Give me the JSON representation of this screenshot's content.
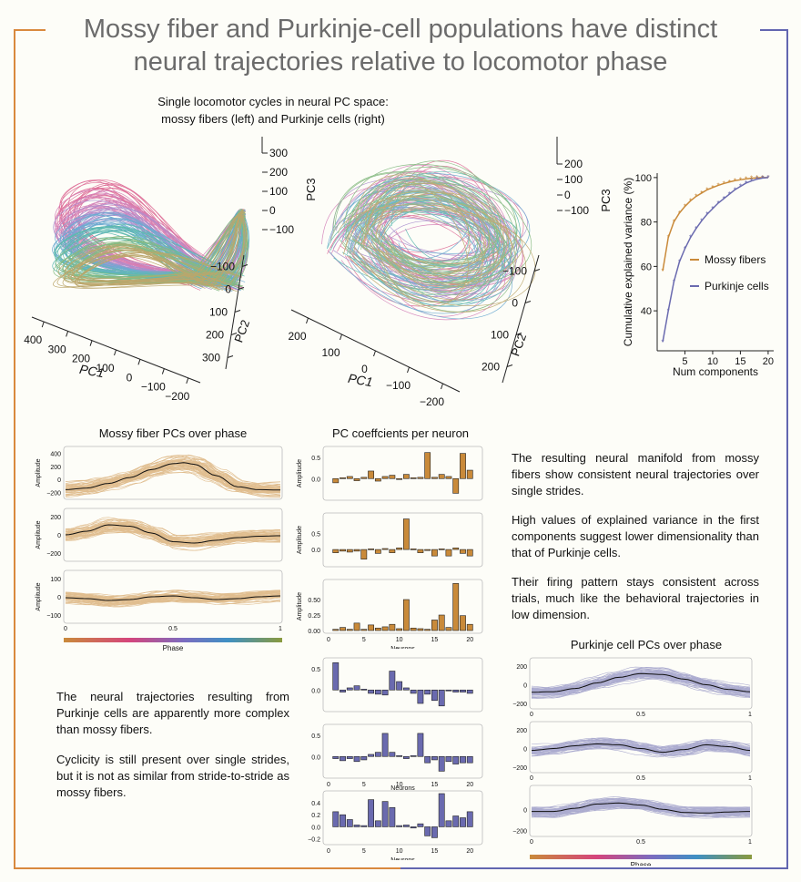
{
  "title_line1": "Mossy fiber and Purkinje-cell populations have distinct",
  "title_line2": "neural trajectories relative to locomotor phase",
  "subtitle_line1": "Single locomotor cycles in neural PC space:",
  "subtitle_line2": "mossy fibers (left) and Purkinje cells (right)",
  "colors": {
    "mossy": "#c98a3a",
    "purkinje": "#6a6aaf",
    "frame_left": "#d9893e",
    "frame_right": "#6266b0"
  },
  "pc3d_left": {
    "pc3_ticks": [
      "300",
      "200",
      "100",
      "0",
      "−100"
    ],
    "pc2_ticks": [
      "−100",
      "0",
      "100",
      "200",
      "300"
    ],
    "pc1_ticks": [
      "400",
      "300",
      "200",
      "100",
      "0",
      "−100",
      "−200"
    ],
    "pc1": "PC1",
    "pc2": "PC2",
    "pc3": "PC3"
  },
  "pc3d_right": {
    "pc3_ticks": [
      "200",
      "100",
      "0",
      "−100"
    ],
    "pc2_ticks": [
      "−100",
      "0",
      "100",
      "200"
    ],
    "pc1_ticks": [
      "200",
      "100",
      "0",
      "−100",
      "−200"
    ],
    "pc1": "PC1",
    "pc2": "PC2",
    "pc3": "PC3"
  },
  "chart_data": [
    {
      "type": "line",
      "title": "",
      "xlabel": "Num components",
      "ylabel": "Cumulative explained variance (%)",
      "x": [
        1,
        2,
        3,
        4,
        5,
        6,
        7,
        8,
        9,
        10,
        11,
        12,
        13,
        14,
        15,
        16,
        17,
        18,
        19,
        20
      ],
      "xticks": [
        "5",
        "10",
        "15",
        "20"
      ],
      "yticks": [
        "40",
        "60",
        "80",
        "100"
      ],
      "ylim": [
        22,
        102
      ],
      "legend_placement": "center-right",
      "series": [
        {
          "name": "Mossy fibers",
          "values": [
            58,
            73,
            80,
            84,
            87,
            89.5,
            91.5,
            93,
            94.5,
            95.5,
            96.5,
            97.3,
            98,
            98.6,
            99,
            99.4,
            99.7,
            99.9,
            100,
            100
          ]
        },
        {
          "name": "Purkinje cells",
          "values": [
            26,
            40,
            53,
            62,
            68,
            73,
            77,
            80.5,
            83.5,
            86,
            88.5,
            90.5,
            92.5,
            94.5,
            96,
            97.5,
            98.5,
            99.3,
            99.8,
            100
          ]
        }
      ]
    },
    {
      "type": "line",
      "title": "Mossy fiber PCs over phase",
      "ylabel": "Amplitude",
      "xlabel": "Phase",
      "xticks": [
        "0",
        "0.5",
        "1"
      ],
      "panels": [
        {
          "yticks": [
            "400",
            "200",
            "0",
            "−200"
          ],
          "ylim": [
            -260,
            460
          ],
          "mean": [
            [
              0,
              -155
            ],
            [
              0.1,
              -130
            ],
            [
              0.2,
              -60
            ],
            [
              0.3,
              30
            ],
            [
              0.4,
              150
            ],
            [
              0.5,
              240
            ],
            [
              0.55,
              255
            ],
            [
              0.6,
              230
            ],
            [
              0.7,
              60
            ],
            [
              0.8,
              -110
            ],
            [
              0.9,
              -155
            ],
            [
              1,
              -160
            ]
          ]
        },
        {
          "yticks": [
            "200",
            "0",
            "−200"
          ],
          "ylim": [
            -260,
            260
          ],
          "mean": [
            [
              0,
              0
            ],
            [
              0.1,
              40
            ],
            [
              0.2,
              110
            ],
            [
              0.3,
              95
            ],
            [
              0.4,
              20
            ],
            [
              0.5,
              -75
            ],
            [
              0.6,
              -90
            ],
            [
              0.7,
              -60
            ],
            [
              0.8,
              -30
            ],
            [
              0.9,
              -15
            ],
            [
              1,
              -10
            ]
          ]
        },
        {
          "yticks": [
            "100",
            "0",
            "−100"
          ],
          "ylim": [
            -130,
            130
          ],
          "mean": [
            [
              0,
              -5
            ],
            [
              0.1,
              -10
            ],
            [
              0.2,
              -20
            ],
            [
              0.3,
              -15
            ],
            [
              0.4,
              0
            ],
            [
              0.5,
              5
            ],
            [
              0.6,
              -5
            ],
            [
              0.7,
              -15
            ],
            [
              0.8,
              -10
            ],
            [
              0.9,
              0
            ],
            [
              1,
              5
            ]
          ]
        }
      ]
    },
    {
      "type": "bar",
      "title": "PC coeffcients per neuron",
      "xlabel": "Neurons",
      "ylabel": "Amplitude",
      "categories": [
        1,
        2,
        3,
        4,
        5,
        6,
        7,
        8,
        9,
        10,
        11,
        12,
        13,
        14,
        15,
        16,
        17,
        18,
        19,
        20
      ],
      "xticks": [
        "0",
        "5",
        "10",
        "15",
        "20"
      ],
      "panels": [
        {
          "yticks": [
            "0.5",
            "0.0"
          ],
          "ylim": [
            -0.45,
            0.7
          ],
          "values": [
            -0.1,
            0.02,
            0.05,
            -0.05,
            0.03,
            0.18,
            -0.06,
            0.05,
            0.08,
            -0.02,
            0.1,
            0.02,
            0.03,
            0.62,
            0.03,
            0.1,
            0.05,
            -0.35,
            0.6,
            0.2
          ]
        },
        {
          "yticks": [
            "0.5",
            "0.0"
          ],
          "ylim": [
            -0.45,
            1.05
          ],
          "values": [
            -0.1,
            -0.05,
            -0.08,
            -0.05,
            -0.3,
            0.02,
            -0.12,
            0.03,
            -0.1,
            0.05,
            0.95,
            0.02,
            -0.1,
            -0.03,
            -0.2,
            0.02,
            -0.2,
            0.05,
            -0.12,
            -0.2
          ]
        },
        {
          "yticks": [
            "0.50",
            "0.25",
            "0.00"
          ],
          "ylim": [
            0,
            0.78
          ],
          "values": [
            0.02,
            0.05,
            0.02,
            0.12,
            0.02,
            0.09,
            0.04,
            0.06,
            0.1,
            0.03,
            0.5,
            0.04,
            0.03,
            0.02,
            0.17,
            0.25,
            0.05,
            0.76,
            0.24,
            0.1
          ]
        }
      ]
    },
    {
      "type": "bar",
      "title": "",
      "xlabel": "Neurons",
      "categories": [
        1,
        2,
        3,
        4,
        5,
        6,
        7,
        8,
        9,
        10,
        11,
        12,
        13,
        14,
        15,
        16,
        17,
        18,
        19,
        20
      ],
      "xticks": [
        "0",
        "5",
        "10",
        "15",
        "20"
      ],
      "panels": [
        {
          "yticks": [
            "0.5",
            "0.0"
          ],
          "ylim": [
            -0.45,
            0.7
          ],
          "values": [
            0.65,
            -0.05,
            0.05,
            0.1,
            0.02,
            -0.08,
            -0.1,
            -0.12,
            0.45,
            0.2,
            0.05,
            -0.08,
            -0.32,
            -0.1,
            -0.25,
            -0.38,
            -0.02,
            -0.05,
            -0.05,
            -0.08
          ]
        },
        {
          "yticks": [
            "0.5",
            "0.0"
          ],
          "ylim": [
            -0.45,
            0.7
          ],
          "values": [
            -0.05,
            -0.1,
            -0.05,
            -0.12,
            -0.08,
            0.05,
            0.1,
            0.55,
            0.1,
            0.02,
            -0.05,
            0.02,
            0.55,
            -0.15,
            -0.08,
            -0.35,
            -0.12,
            -0.18,
            -0.15,
            -0.15
          ]
        },
        {
          "yticks": [
            "0.4",
            "0.2",
            "0.0",
            "−0.2"
          ],
          "ylim": [
            -0.25,
            0.55
          ],
          "values": [
            0.25,
            0.2,
            0.12,
            0.03,
            0.02,
            0.45,
            0.1,
            0.42,
            0.32,
            0.02,
            0.03,
            -0.02,
            0.05,
            -0.15,
            -0.18,
            0.55,
            0.1,
            0.18,
            0.15,
            0.25
          ]
        }
      ]
    },
    {
      "type": "line",
      "title": "Purkinje cell PCs over phase",
      "xlabel": "Phase",
      "xticks": [
        "0",
        "0.5",
        "1"
      ],
      "panels": [
        {
          "yticks": [
            "200",
            "0",
            "−200"
          ],
          "ylim": [
            -230,
            260
          ],
          "mean": [
            [
              0,
              -80
            ],
            [
              0.1,
              -75
            ],
            [
              0.2,
              -40
            ],
            [
              0.3,
              20
            ],
            [
              0.4,
              80
            ],
            [
              0.5,
              120
            ],
            [
              0.6,
              110
            ],
            [
              0.7,
              60
            ],
            [
              0.8,
              0
            ],
            [
              0.9,
              -50
            ],
            [
              1,
              -75
            ]
          ]
        },
        {
          "yticks": [
            "200",
            "0",
            "−200"
          ],
          "ylim": [
            -230,
            260
          ],
          "mean": [
            [
              0,
              -20
            ],
            [
              0.1,
              0
            ],
            [
              0.2,
              30
            ],
            [
              0.3,
              50
            ],
            [
              0.4,
              40
            ],
            [
              0.5,
              0
            ],
            [
              0.6,
              -40
            ],
            [
              0.7,
              -10
            ],
            [
              0.8,
              40
            ],
            [
              0.9,
              20
            ],
            [
              1,
              -20
            ]
          ]
        },
        {
          "yticks": [
            "0",
            "−200"
          ],
          "ylim": [
            -230,
            200
          ],
          "mean": [
            [
              0,
              -20
            ],
            [
              0.1,
              -20
            ],
            [
              0.2,
              10
            ],
            [
              0.3,
              50
            ],
            [
              0.4,
              60
            ],
            [
              0.5,
              40
            ],
            [
              0.6,
              0
            ],
            [
              0.7,
              -30
            ],
            [
              0.8,
              -35
            ],
            [
              0.9,
              -25
            ],
            [
              1,
              -20
            ]
          ]
        }
      ]
    }
  ],
  "text_mossy_1": "The resulting neural manifold from mossy fibers show consistent neural trajectories over single strides.",
  "text_mossy_2": "High values of explained variance in the first components suggest lower dimensionality than that of Purkinje cells.",
  "text_mossy_3": "Their firing pattern stays consistent across trials, much like the behavioral trajectories in low dimension.",
  "text_pc_1": "The neural trajectories resulting from Purkinje cells are apparently more complex than mossy fibers.",
  "text_pc_2": "Cyclicity is still present over single strides, but it is not as similar from stride-to-stride as mossy fibers."
}
